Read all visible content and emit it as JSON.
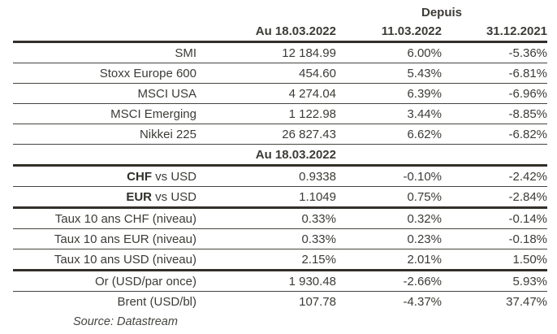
{
  "colors": {
    "background": "#ffffff",
    "text": "#3c3b37",
    "header_text": "#2f2e2a",
    "thin_line": "#45443f",
    "thick_line": "#32302a"
  },
  "chart_data": {
    "type": "table",
    "title": "",
    "header": {
      "group_label": "Depuis",
      "col_au": "Au 18.03.2022",
      "col_since_a": "11.03.2022",
      "col_since_b": "31.12.2021"
    },
    "indices": [
      {
        "label": "SMI",
        "au": "12 184.99",
        "s1": "6.00%",
        "s2": "-5.36%"
      },
      {
        "label": "Stoxx Europe 600",
        "au": "454.60",
        "s1": "5.43%",
        "s2": "-6.81%"
      },
      {
        "label": "MSCI USA",
        "au": "4 274.04",
        "s1": "6.39%",
        "s2": "-6.96%"
      },
      {
        "label": "MSCI Emerging",
        "au": "1 122.98",
        "s1": "3.44%",
        "s2": "-8.85%"
      },
      {
        "label": "Nikkei 225",
        "au": "26 827.43",
        "s1": "6.62%",
        "s2": "-6.82%"
      }
    ],
    "mid_header": "Au 18.03.2022",
    "fx": [
      {
        "bold": "CHF",
        "rest": " vs USD",
        "au": "0.9338",
        "s1": "-0.10%",
        "s2": "-2.42%"
      },
      {
        "bold": "EUR",
        "rest": " vs USD",
        "au": "1.1049",
        "s1": "0.75%",
        "s2": "-2.84%"
      }
    ],
    "rates": [
      {
        "label": "Taux 10 ans CHF (niveau)",
        "au": "0.33%",
        "s1": "0.32%",
        "s2": "-0.14%"
      },
      {
        "label": "Taux 10 ans EUR (niveau)",
        "au": "0.33%",
        "s1": "0.23%",
        "s2": "-0.18%"
      },
      {
        "label": "Taux 10 ans USD (niveau)",
        "au": "2.15%",
        "s1": "2.01%",
        "s2": "1.50%"
      }
    ],
    "commodities": [
      {
        "label": "Or (USD/par once)",
        "au": "1 930.48",
        "s1": "-2.66%",
        "s2": "5.93%"
      },
      {
        "label": "Brent (USD/bl)",
        "au": "107.78",
        "s1": "-4.37%",
        "s2": "37.47%"
      }
    ],
    "source": "Source: Datastream"
  }
}
